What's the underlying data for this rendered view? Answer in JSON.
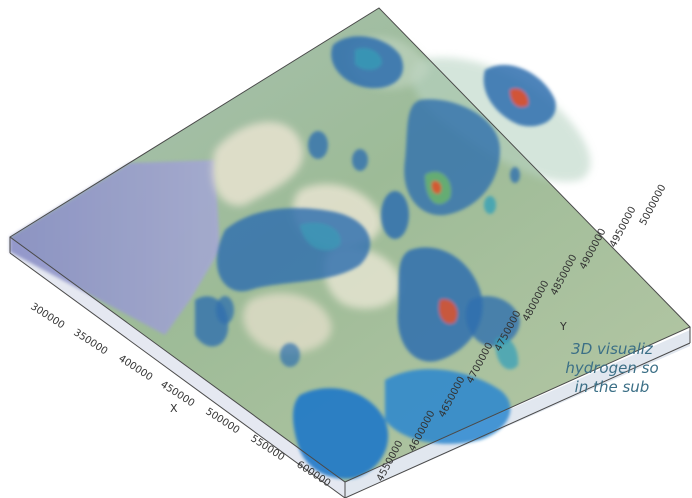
{
  "figure": {
    "caption_lines": [
      "3D visualiz",
      "hydrogen so",
      "in the sub"
    ]
  },
  "axes": {
    "x": {
      "label": "X",
      "ticks": [
        "300000",
        "350000",
        "400000",
        "450000",
        "500000",
        "550000",
        "600000"
      ]
    },
    "y": {
      "label": "Y",
      "ticks": [
        "4550000",
        "4600000",
        "4650000",
        "4700000",
        "4750000",
        "4800000",
        "4850000",
        "4900000",
        "4950000",
        "5000000"
      ]
    }
  },
  "colors": {
    "box_outline": "#4a4a4a",
    "map_green": "#8fb48f",
    "map_light": "#e6e2d2",
    "sea": "#8f95c8",
    "voxel_blue": "#2f6fae",
    "voxel_teal": "#35a0b8",
    "hotspot": "#e0522a",
    "caption": "#3b6f86"
  }
}
